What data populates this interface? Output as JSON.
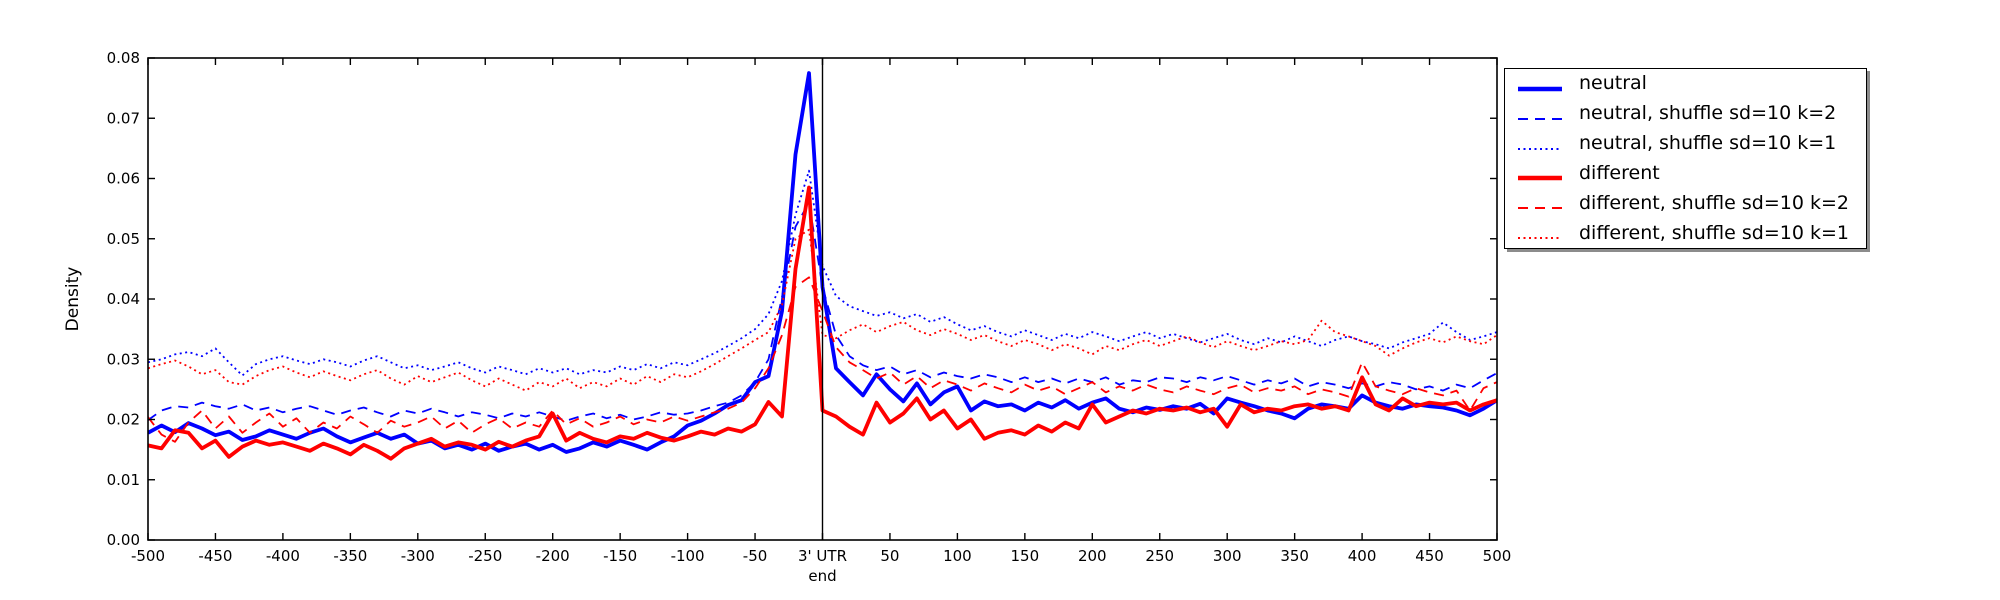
{
  "figure": {
    "background": "#ffffff"
  },
  "colors": {
    "neutral": "#0000ff",
    "different": "#ff0000",
    "axis": "#000000"
  },
  "chart_data": {
    "type": "line",
    "title": "",
    "xlabel": "",
    "ylabel": "Density",
    "xlim": [
      -500,
      500
    ],
    "ylim": [
      0.0,
      0.08
    ],
    "grid": false,
    "vline_x": 0,
    "legend_position": "outside-upper-right",
    "xtick_values": [
      -500,
      -450,
      -400,
      -350,
      -300,
      -250,
      -200,
      -150,
      -100,
      -50,
      0,
      50,
      100,
      150,
      200,
      250,
      300,
      350,
      400,
      450,
      500
    ],
    "xtick_labels": [
      "-500",
      "-450",
      "-400",
      "-350",
      "-300",
      "-250",
      "-200",
      "-150",
      "-100",
      "-50",
      "3' UTR\nend",
      "50",
      "100",
      "150",
      "200",
      "250",
      "300",
      "350",
      "400",
      "450",
      "500"
    ],
    "ytick_values": [
      0.0,
      0.01,
      0.02,
      0.03,
      0.04,
      0.05,
      0.06,
      0.07,
      0.08
    ],
    "ytick_labels": [
      "0.00",
      "0.01",
      "0.02",
      "0.03",
      "0.04",
      "0.05",
      "0.06",
      "0.07",
      "0.08"
    ],
    "x_start": -500,
    "x_step": 10,
    "series": [
      {
        "name": "neutral",
        "color": "#0000ff",
        "style": "solid",
        "width": 3.8,
        "values": [
          0.0178,
          0.019,
          0.0179,
          0.0194,
          0.0185,
          0.0174,
          0.018,
          0.0166,
          0.0172,
          0.0182,
          0.0175,
          0.0168,
          0.0178,
          0.0185,
          0.0172,
          0.0162,
          0.017,
          0.0178,
          0.0168,
          0.0175,
          0.016,
          0.0165,
          0.0152,
          0.0158,
          0.015,
          0.016,
          0.0148,
          0.0155,
          0.016,
          0.015,
          0.0158,
          0.0146,
          0.0152,
          0.0162,
          0.0155,
          0.0165,
          0.0158,
          0.015,
          0.0162,
          0.0172,
          0.019,
          0.0198,
          0.021,
          0.0224,
          0.0232,
          0.0262,
          0.0272,
          0.038,
          0.064,
          0.0775,
          0.042,
          0.0285,
          0.0262,
          0.024,
          0.0275,
          0.025,
          0.023,
          0.026,
          0.0225,
          0.0245,
          0.0255,
          0.0215,
          0.023,
          0.0222,
          0.0225,
          0.0215,
          0.0228,
          0.022,
          0.0232,
          0.0218,
          0.0228,
          0.0235,
          0.0218,
          0.0212,
          0.022,
          0.0216,
          0.0222,
          0.0218,
          0.0226,
          0.021,
          0.0235,
          0.0228,
          0.0222,
          0.0215,
          0.021,
          0.0202,
          0.0218,
          0.0225,
          0.0222,
          0.0218,
          0.024,
          0.0228,
          0.0222,
          0.0218,
          0.0225,
          0.0222,
          0.022,
          0.0215,
          0.0207,
          0.0218,
          0.0232
        ]
      },
      {
        "name": "neutral, shuffle sd=10 k=2",
        "color": "#0000ff",
        "style": "dashed",
        "width": 1.8,
        "values": [
          0.0199,
          0.0215,
          0.0222,
          0.022,
          0.0228,
          0.0222,
          0.0218,
          0.0225,
          0.0215,
          0.022,
          0.0212,
          0.0218,
          0.0222,
          0.0215,
          0.0208,
          0.0215,
          0.022,
          0.0212,
          0.0205,
          0.0215,
          0.021,
          0.0218,
          0.0212,
          0.0205,
          0.0212,
          0.0208,
          0.0202,
          0.021,
          0.0205,
          0.0212,
          0.0205,
          0.0198,
          0.0205,
          0.021,
          0.0202,
          0.0208,
          0.02,
          0.0205,
          0.0212,
          0.0208,
          0.021,
          0.0215,
          0.0222,
          0.0228,
          0.024,
          0.0262,
          0.03,
          0.0403,
          0.052,
          0.056,
          0.042,
          0.034,
          0.0305,
          0.029,
          0.0282,
          0.0288,
          0.0275,
          0.0282,
          0.027,
          0.0278,
          0.0272,
          0.0268,
          0.0275,
          0.027,
          0.0262,
          0.027,
          0.0262,
          0.0268,
          0.026,
          0.0268,
          0.0262,
          0.027,
          0.0258,
          0.0265,
          0.0262,
          0.027,
          0.0268,
          0.0262,
          0.027,
          0.0265,
          0.0272,
          0.0265,
          0.0258,
          0.0265,
          0.026,
          0.0268,
          0.0255,
          0.0262,
          0.0258,
          0.0252,
          0.026,
          0.0255,
          0.0262,
          0.0258,
          0.025,
          0.0255,
          0.0248,
          0.0258,
          0.0252,
          0.0265,
          0.0277
        ]
      },
      {
        "name": "neutral, shuffle sd=10 k=1",
        "color": "#0000ff",
        "style": "dotted",
        "width": 1.8,
        "values": [
          0.0295,
          0.03,
          0.0308,
          0.0312,
          0.0305,
          0.0318,
          0.0295,
          0.0273,
          0.0292,
          0.03,
          0.0305,
          0.0298,
          0.0292,
          0.03,
          0.0295,
          0.0288,
          0.0298,
          0.0305,
          0.0295,
          0.0285,
          0.029,
          0.0282,
          0.0288,
          0.0295,
          0.0285,
          0.0278,
          0.0288,
          0.0282,
          0.0275,
          0.0285,
          0.0278,
          0.0285,
          0.0275,
          0.0282,
          0.0278,
          0.0288,
          0.0282,
          0.0292,
          0.0285,
          0.0295,
          0.029,
          0.03,
          0.031,
          0.0322,
          0.0335,
          0.035,
          0.0375,
          0.043,
          0.054,
          0.0613,
          0.0455,
          0.0405,
          0.0388,
          0.038,
          0.0372,
          0.0378,
          0.0368,
          0.0375,
          0.0362,
          0.037,
          0.0358,
          0.0348,
          0.0355,
          0.0345,
          0.0338,
          0.0348,
          0.034,
          0.0332,
          0.0342,
          0.0335,
          0.0345,
          0.0338,
          0.033,
          0.0338,
          0.0345,
          0.0335,
          0.0342,
          0.0335,
          0.0328,
          0.0335,
          0.0342,
          0.0332,
          0.0325,
          0.0335,
          0.0328,
          0.0338,
          0.033,
          0.0322,
          0.0332,
          0.0338,
          0.033,
          0.0325,
          0.0318,
          0.0328,
          0.0335,
          0.0342,
          0.0361,
          0.0345,
          0.0332,
          0.0338,
          0.0345
        ]
      },
      {
        "name": "different",
        "color": "#ff0000",
        "style": "solid",
        "width": 3.8,
        "values": [
          0.0157,
          0.0152,
          0.0182,
          0.0178,
          0.0152,
          0.0165,
          0.0138,
          0.0155,
          0.0165,
          0.0158,
          0.0162,
          0.0155,
          0.0148,
          0.016,
          0.0152,
          0.0142,
          0.0158,
          0.0148,
          0.0135,
          0.0152,
          0.016,
          0.0168,
          0.0155,
          0.0162,
          0.0158,
          0.015,
          0.0163,
          0.0155,
          0.0165,
          0.0172,
          0.021,
          0.0165,
          0.0178,
          0.0168,
          0.0162,
          0.0172,
          0.0168,
          0.0178,
          0.017,
          0.0165,
          0.0172,
          0.018,
          0.0175,
          0.0185,
          0.018,
          0.0192,
          0.0229,
          0.0205,
          0.045,
          0.0585,
          0.0215,
          0.0205,
          0.0188,
          0.0175,
          0.0228,
          0.0195,
          0.021,
          0.0235,
          0.02,
          0.0215,
          0.0185,
          0.02,
          0.0168,
          0.0178,
          0.0182,
          0.0175,
          0.019,
          0.018,
          0.0195,
          0.0185,
          0.0225,
          0.0195,
          0.0205,
          0.0215,
          0.021,
          0.0218,
          0.0215,
          0.022,
          0.0212,
          0.0218,
          0.0188,
          0.0225,
          0.0212,
          0.0218,
          0.0215,
          0.0222,
          0.0225,
          0.0218,
          0.0222,
          0.0215,
          0.027,
          0.0225,
          0.0215,
          0.0235,
          0.0222,
          0.0228,
          0.0225,
          0.0228,
          0.0215,
          0.0225,
          0.0232
        ]
      },
      {
        "name": "different, shuffle sd=10 k=2",
        "color": "#ff0000",
        "style": "dashed",
        "width": 1.8,
        "values": [
          0.0204,
          0.0175,
          0.0163,
          0.0195,
          0.0215,
          0.0185,
          0.0205,
          0.0178,
          0.0195,
          0.021,
          0.0188,
          0.0202,
          0.0178,
          0.0195,
          0.0185,
          0.0205,
          0.0192,
          0.0178,
          0.0198,
          0.0188,
          0.0195,
          0.0205,
          0.0185,
          0.0198,
          0.0178,
          0.0192,
          0.0202,
          0.0185,
          0.0195,
          0.0188,
          0.0215,
          0.0192,
          0.0202,
          0.0188,
          0.0195,
          0.0205,
          0.0192,
          0.02,
          0.0195,
          0.0205,
          0.0198,
          0.0205,
          0.0212,
          0.0218,
          0.0228,
          0.0252,
          0.0285,
          0.034,
          0.042,
          0.0436,
          0.038,
          0.032,
          0.0295,
          0.0282,
          0.0268,
          0.0278,
          0.0258,
          0.0272,
          0.0252,
          0.0265,
          0.0258,
          0.0248,
          0.026,
          0.0252,
          0.0245,
          0.0258,
          0.0248,
          0.0255,
          0.0242,
          0.0252,
          0.0262,
          0.0245,
          0.0255,
          0.0248,
          0.0258,
          0.025,
          0.0245,
          0.0255,
          0.0248,
          0.0242,
          0.0252,
          0.0258,
          0.0245,
          0.0252,
          0.0248,
          0.0255,
          0.0242,
          0.025,
          0.0245,
          0.0238,
          0.0295,
          0.0255,
          0.0248,
          0.0242,
          0.0252,
          0.0245,
          0.024,
          0.0248,
          0.0215,
          0.0252,
          0.0262
        ]
      },
      {
        "name": "different, shuffle sd=10 k=1",
        "color": "#ff0000",
        "style": "dotted",
        "width": 1.8,
        "values": [
          0.0285,
          0.0292,
          0.0298,
          0.0288,
          0.0275,
          0.0282,
          0.0262,
          0.0258,
          0.0272,
          0.0282,
          0.0288,
          0.0278,
          0.027,
          0.028,
          0.0272,
          0.0265,
          0.0275,
          0.0282,
          0.0268,
          0.0258,
          0.0272,
          0.0262,
          0.027,
          0.0278,
          0.0265,
          0.0255,
          0.0268,
          0.0258,
          0.0248,
          0.0262,
          0.0255,
          0.0268,
          0.0252,
          0.0262,
          0.0255,
          0.0268,
          0.0258,
          0.0272,
          0.0262,
          0.0275,
          0.027,
          0.028,
          0.0292,
          0.0305,
          0.0318,
          0.0332,
          0.0345,
          0.039,
          0.05,
          0.0515,
          0.034,
          0.0335,
          0.0348,
          0.0358,
          0.0345,
          0.0355,
          0.0362,
          0.0348,
          0.034,
          0.035,
          0.0342,
          0.0332,
          0.034,
          0.033,
          0.0322,
          0.0332,
          0.0325,
          0.0315,
          0.0325,
          0.0318,
          0.0308,
          0.0322,
          0.0315,
          0.0325,
          0.0332,
          0.0322,
          0.033,
          0.0338,
          0.0328,
          0.032,
          0.033,
          0.0322,
          0.0315,
          0.0322,
          0.033,
          0.0325,
          0.0332,
          0.0364,
          0.0345,
          0.0338,
          0.033,
          0.0322,
          0.0306,
          0.0318,
          0.0328,
          0.0335,
          0.0328,
          0.0338,
          0.033,
          0.0325,
          0.034
        ]
      }
    ]
  }
}
